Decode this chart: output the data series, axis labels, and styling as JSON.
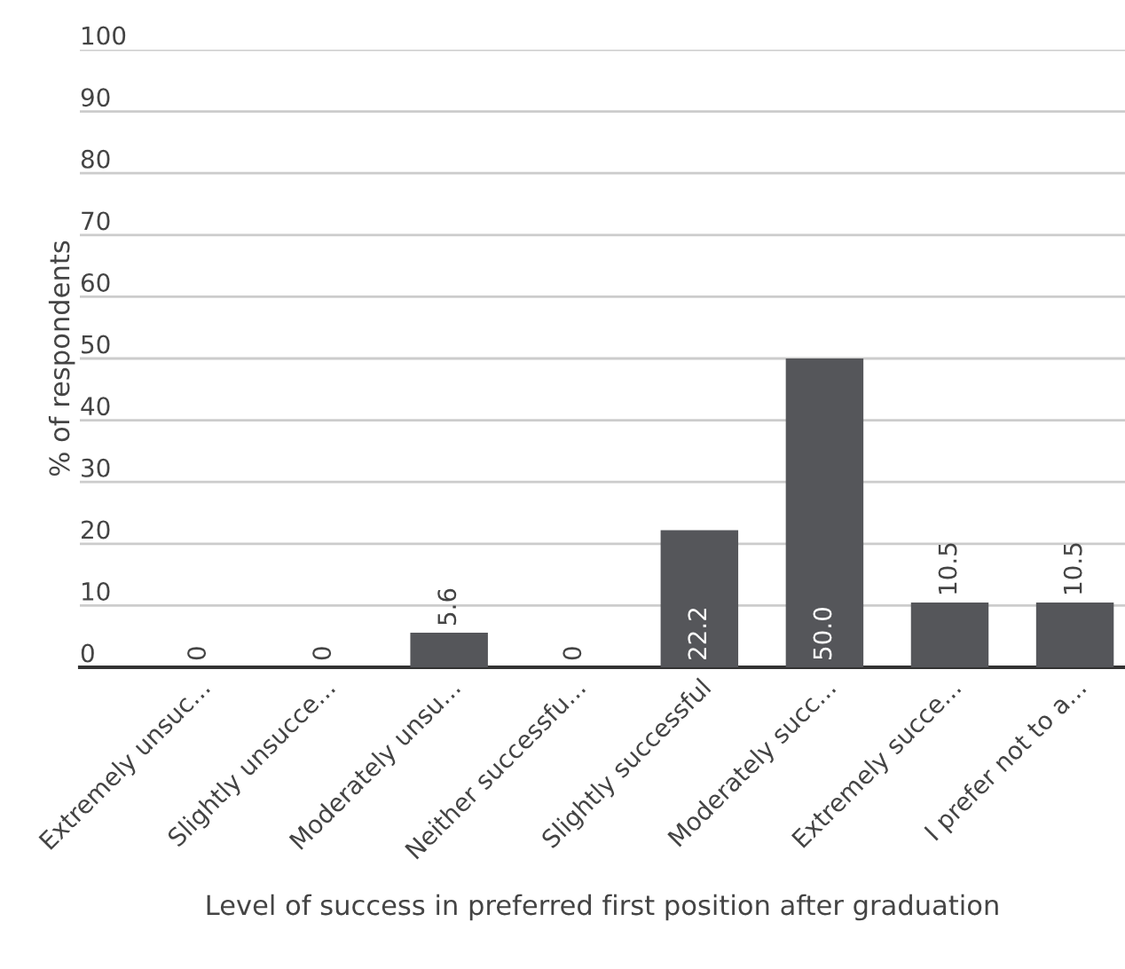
{
  "chart_data": {
    "type": "bar",
    "xlabel": "Level of success in preferred first position after graduation",
    "ylabel": "% of respondents",
    "categories": [
      "Extremely unsuc...",
      "Slightly unsucce...",
      "Moderately unsu...",
      "Neither successfu...",
      "Slightly successful",
      "Moderately succ...",
      "Extremely succe...",
      "I prefer not to a..."
    ],
    "values": [
      0,
      0,
      5.6,
      0,
      22.2,
      50.0,
      10.5,
      10.5
    ],
    "value_labels": [
      "0",
      "0",
      "5.6",
      "0",
      "22.2",
      "50.0",
      "10.5",
      "10.5"
    ],
    "color": "#55565a",
    "ylim": [
      0,
      100
    ],
    "yticks": [
      0,
      10,
      20,
      30,
      40,
      50,
      60,
      70,
      80,
      90,
      100
    ],
    "grid": "y",
    "legend": false
  }
}
